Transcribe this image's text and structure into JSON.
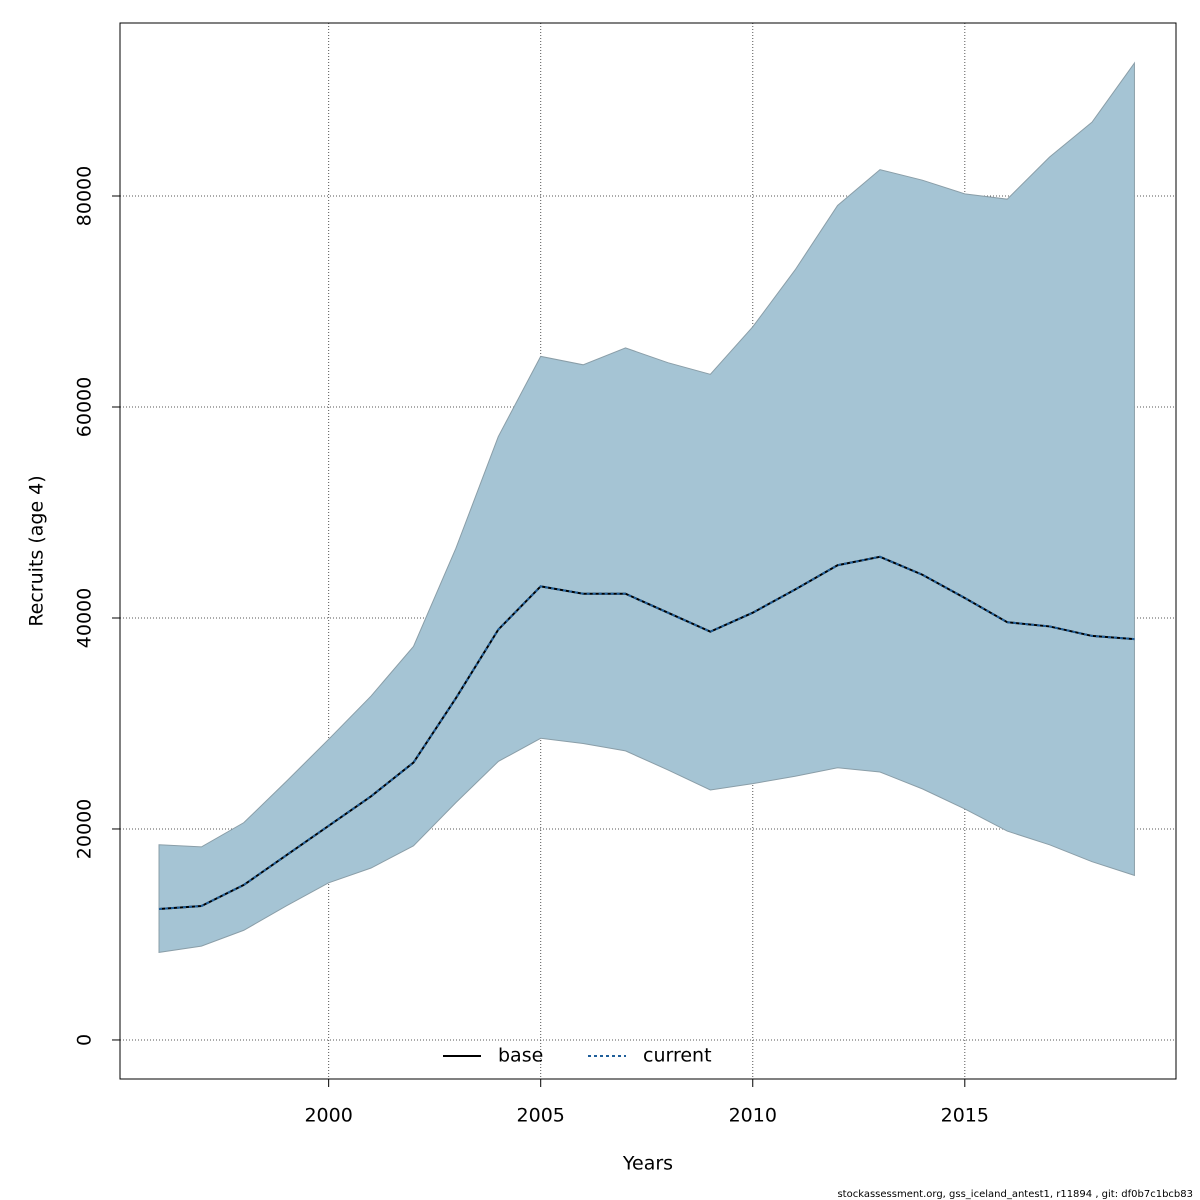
{
  "chart_data": {
    "type": "line",
    "x_label": "Years",
    "y_label": "Recruits (age 4)",
    "footnote": "stockassessment.org, gss_iceland_antest1, r11894 , git: df0b7c1bcb83",
    "x": [
      1996,
      1997,
      1998,
      1999,
      2000,
      2001,
      2002,
      2003,
      2004,
      2005,
      2006,
      2007,
      2008,
      2009,
      2010,
      2011,
      2012,
      2013,
      2014,
      2015,
      2016,
      2017,
      2018,
      2019
    ],
    "series": [
      {
        "name": "base",
        "color": "#000000",
        "style": "solid",
        "values": [
          12420,
          12700,
          14700,
          17500,
          20300,
          23100,
          26300,
          32400,
          38900,
          43000,
          42300,
          42300,
          40500,
          38700,
          40500,
          42700,
          45000,
          45800,
          44100,
          41900,
          39600,
          39200,
          38300,
          38000
        ]
      },
      {
        "name": "current",
        "color": "#1f5f9a",
        "style": "dotted",
        "values": [
          12420,
          12700,
          14700,
          17500,
          20300,
          23100,
          26300,
          32400,
          38900,
          43000,
          42300,
          42300,
          40500,
          38700,
          40500,
          42700,
          45000,
          45800,
          44100,
          41900,
          39600,
          39200,
          38300,
          38000
        ],
        "band_color": "#a5c4d4",
        "upper": [
          18500,
          18300,
          20600,
          24500,
          28500,
          32600,
          37300,
          46600,
          57200,
          64800,
          64000,
          65600,
          64200,
          63100,
          67600,
          73000,
          79100,
          82500,
          81500,
          80200,
          79700,
          83700,
          87000,
          92600
        ],
        "lower": [
          8300,
          8900,
          10400,
          12700,
          14900,
          16300,
          18400,
          22500,
          26400,
          28600,
          28100,
          27400,
          25600,
          23700,
          24300,
          25000,
          25800,
          25400,
          23800,
          21900,
          19800,
          18500,
          16900,
          15600
        ]
      }
    ],
    "xlim": [
      1995.08,
      2019.98
    ],
    "ylim": [
      -3700,
      96400
    ],
    "xticks": [
      2000,
      2005,
      2010,
      2015
    ],
    "yticks": [
      0,
      20000,
      40000,
      60000,
      80000
    ],
    "grid": true,
    "legend_position": "bottom"
  }
}
